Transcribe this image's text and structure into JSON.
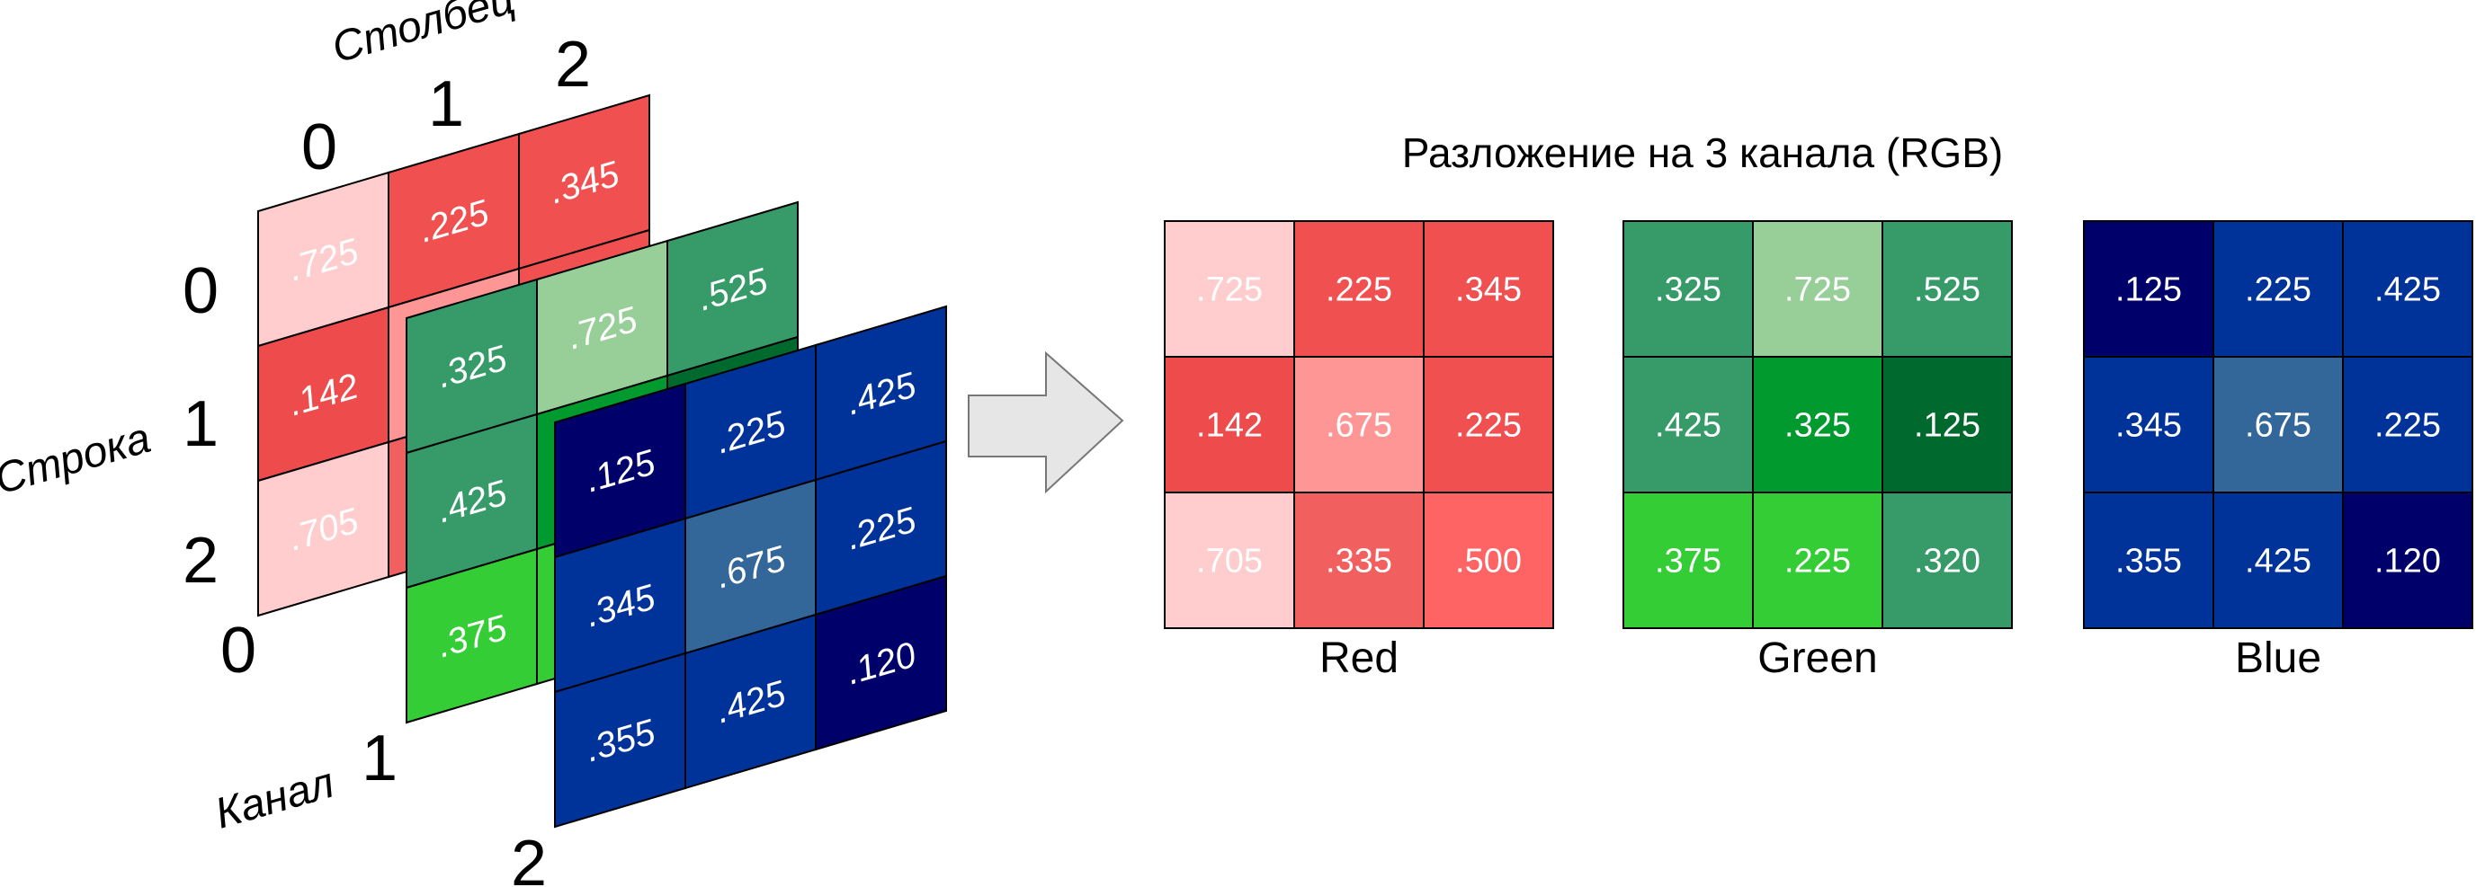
{
  "axes": {
    "column_label": "Столбец",
    "row_label": "Строка",
    "channel_label": "Канал",
    "column_indices": [
      "0",
      "1",
      "2"
    ],
    "row_indices": [
      "0",
      "1",
      "2"
    ],
    "channel_indices": [
      "0",
      "1",
      "2"
    ]
  },
  "decomposition_title": "Разложение на 3 канала (RGB)",
  "channels": [
    {
      "name": "Red",
      "values": [
        [
          ".725",
          ".225",
          ".345"
        ],
        [
          ".142",
          ".675",
          ".225"
        ],
        [
          ".705",
          ".335",
          ".500"
        ]
      ],
      "colors": [
        [
          "#FFCDCD",
          "#F05050",
          "#F05050"
        ],
        [
          "#EE4C4C",
          "#FF9696",
          "#F05050"
        ],
        [
          "#FFCDCD",
          "#F25F5F",
          "#FF6464"
        ]
      ]
    },
    {
      "name": "Green",
      "values": [
        [
          ".325",
          ".725",
          ".525"
        ],
        [
          ".425",
          ".325",
          ".125"
        ],
        [
          ".375",
          ".225",
          ".320"
        ]
      ],
      "colors": [
        [
          "#369B69",
          "#98CF98",
          "#369B69"
        ],
        [
          "#369B69",
          "#009A2E",
          "#006A2E"
        ],
        [
          "#35CD35",
          "#35CD35",
          "#369B69"
        ]
      ]
    },
    {
      "name": "Blue",
      "values": [
        [
          ".125",
          ".225",
          ".425"
        ],
        [
          ".345",
          ".675",
          ".225"
        ],
        [
          ".355",
          ".425",
          ".120"
        ]
      ],
      "colors": [
        [
          "#00006B",
          "#003399",
          "#003399"
        ],
        [
          "#003399",
          "#336699",
          "#003399"
        ],
        [
          "#003399",
          "#003399",
          "#00006B"
        ]
      ]
    }
  ]
}
